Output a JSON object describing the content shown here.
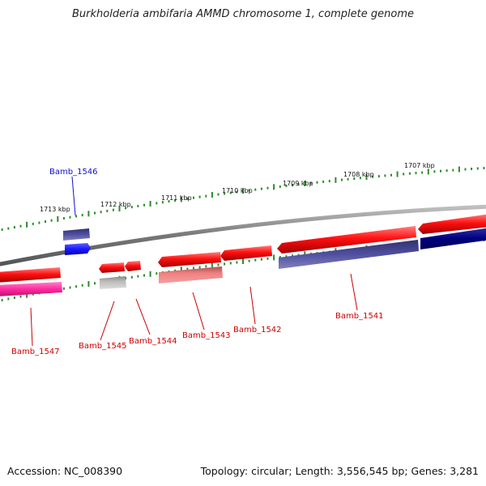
{
  "title": "Burkholderia ambifaria AMMD chromosome 1, complete genome",
  "footer": {
    "accession": "Accession: NC_008390",
    "summary": "Topology: circular; Length: 3,556,545 bp; Genes: 3,281"
  },
  "colors": {
    "backbone": "#888888",
    "ticks": "#2e8b2e",
    "forward_gene": "#ff1010",
    "reverse_gene": "#ff1010",
    "cds_blue": "#1a1aff",
    "cds_navy": "#000080",
    "label_red": "#cc0000",
    "label_blue": "#1010cc",
    "pink": "#ff2aa0",
    "light_red": "#f08080",
    "purple": "#5050a0",
    "grey": "#bbbbbb"
  },
  "scale_labels": [
    "1713 kbp",
    "1712 kbp",
    "1711 kbp",
    "1710 kbp",
    "1709 kbp",
    "1708 kbp",
    "1707 kbp"
  ],
  "gene_labels": [
    {
      "text": "Bamb_1546",
      "color": "label_blue"
    },
    {
      "text": "Bamb_1547",
      "color": "label_red"
    },
    {
      "text": "Bamb_1545",
      "color": "label_red"
    },
    {
      "text": "Bamb_1544",
      "color": "label_red"
    },
    {
      "text": "Bamb_1543",
      "color": "label_red"
    },
    {
      "text": "Bamb_1542",
      "color": "label_red"
    },
    {
      "text": "Bamb_1541",
      "color": "label_red"
    }
  ]
}
